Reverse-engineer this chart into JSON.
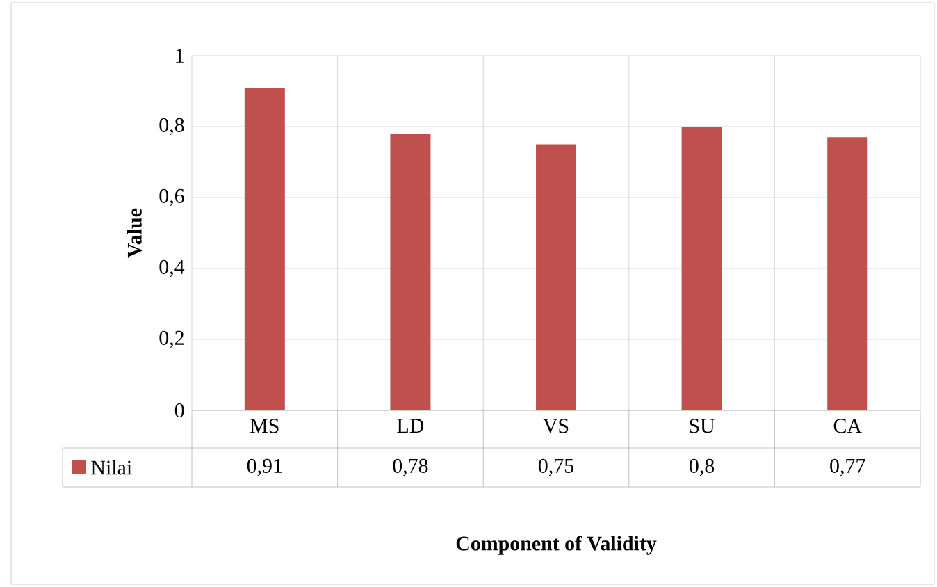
{
  "chart_data": {
    "type": "bar",
    "xlabel": "Component of Validity",
    "ylabel": "Value",
    "categories": [
      "MS",
      "LD",
      "VS",
      "SU",
      "CA"
    ],
    "series": [
      {
        "name": "Nilai",
        "color": "#c0504d",
        "values": [
          0.91,
          0.78,
          0.75,
          0.8,
          0.77
        ],
        "value_labels": [
          "0,91",
          "0,78",
          "0,75",
          "0,8",
          "0,77"
        ]
      }
    ],
    "ylim": [
      0,
      1
    ],
    "yticks": [
      0,
      {
        "value": 0.2,
        "label": "0,2"
      },
      {
        "value": 0.4,
        "label": "0,4"
      },
      {
        "value": 0.6,
        "label": "0,6"
      },
      {
        "value": 0.8,
        "label": "0,8"
      },
      1
    ],
    "grid": true,
    "legend": "bottom left"
  }
}
